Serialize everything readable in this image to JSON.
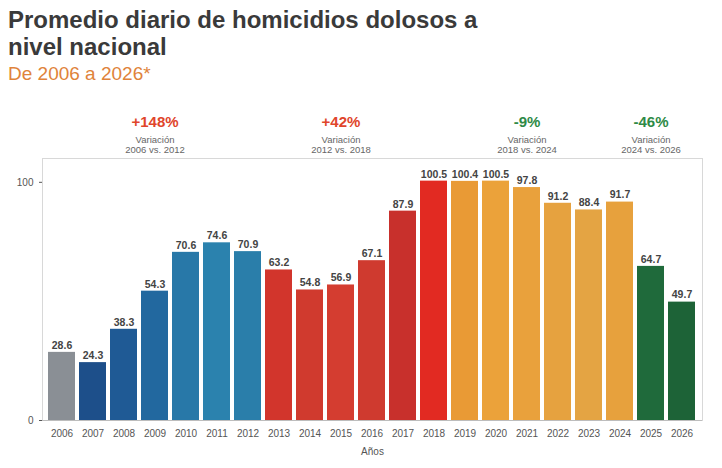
{
  "chart_data": {
    "type": "bar",
    "title": "Promedio diario de homicidios dolosos a nivel nacional",
    "subtitle": "De 2006 a 2026*",
    "x_label": "Años",
    "categories": [
      "2006",
      "2007",
      "2008",
      "2009",
      "2010",
      "2011",
      "2012",
      "2013",
      "2014",
      "2015",
      "2016",
      "2017",
      "2018",
      "2019",
      "2020",
      "2021",
      "2022",
      "2023",
      "2024",
      "2025",
      "2026"
    ],
    "values": [
      28.6,
      24.3,
      38.3,
      54.3,
      70.6,
      74.6,
      70.9,
      63.2,
      54.8,
      56.9,
      67.1,
      87.9,
      100.5,
      100.4,
      100.5,
      97.8,
      91.2,
      88.4,
      91.7,
      64.7,
      49.7
    ],
    "colors": [
      "#8a8f95",
      "#1d4f8a",
      "#1f5a95",
      "#22689f",
      "#2878a8",
      "#2b82ae",
      "#2a7eaa",
      "#d2352c",
      "#d03a2e",
      "#d43d30",
      "#cf3a2f",
      "#c8302c",
      "#e22a22",
      "#e99a35",
      "#eba23a",
      "#e9a13c",
      "#e6a23f",
      "#e4a443",
      "#e7a13d",
      "#1f6a3b",
      "#1d6337"
    ],
    "ylim": [
      0,
      110
    ],
    "yticks": [
      0,
      100
    ],
    "data_labels": true,
    "annotations": [
      {
        "text": "+148%",
        "note": [
          "Variación",
          "2006 vs. 2012"
        ],
        "from": "2006",
        "to": "2012",
        "color": "#e0452b"
      },
      {
        "text": "+42%",
        "note": [
          "Variación",
          "2012 vs. 2018"
        ],
        "from": "2012",
        "to": "2018",
        "color": "#e0452b"
      },
      {
        "text": "-9%",
        "note": [
          "Variación",
          "2018 vs. 2024"
        ],
        "from": "2018",
        "to": "2024",
        "color": "#2e8a46"
      },
      {
        "text": "-46%",
        "note": [
          "Variación",
          "2024 vs. 2026"
        ],
        "from": "2024",
        "to": "2026",
        "color": "#2e8a46"
      }
    ]
  }
}
